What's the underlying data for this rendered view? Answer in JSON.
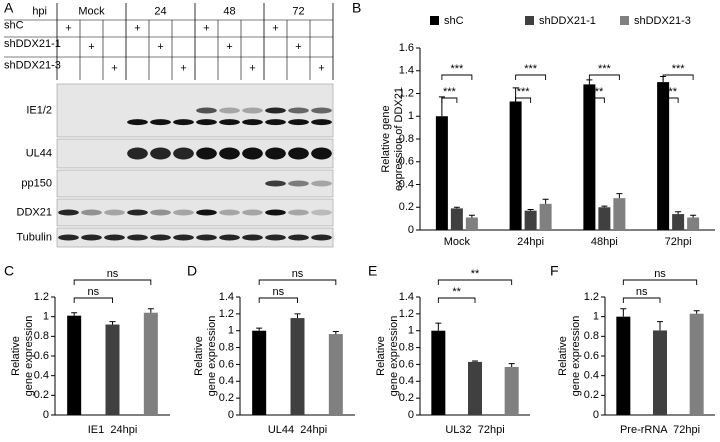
{
  "blot": {
    "label": "A",
    "header": {
      "title": "hpi",
      "groups": [
        "Mock",
        "24",
        "48",
        "72"
      ]
    },
    "rows": [
      {
        "label": "shC",
        "marks": [
          "+",
          null,
          null,
          "+",
          null,
          null,
          "+",
          null,
          null,
          "+",
          null,
          null
        ]
      },
      {
        "label": "shDDX21-1",
        "marks": [
          null,
          "+",
          null,
          null,
          "+",
          null,
          null,
          "+",
          null,
          null,
          "+",
          null
        ]
      },
      {
        "label": "shDDX21-3",
        "marks": [
          null,
          null,
          "+",
          null,
          null,
          "+",
          null,
          null,
          "+",
          null,
          null,
          "+"
        ]
      }
    ],
    "bands": [
      "IE1/2",
      "UL44",
      "pp150",
      "DDX21",
      "Tubulin"
    ]
  },
  "chart_data": [
    {
      "label": "B",
      "type": "bar",
      "categories": [
        "Mock",
        "24hpi",
        "48hpi",
        "72hpi"
      ],
      "series": [
        {
          "name": "shC",
          "color": "#000000",
          "values": [
            1.0,
            1.13,
            1.28,
            1.3
          ],
          "errors": [
            0.17,
            0.12,
            0.04,
            0.05
          ]
        },
        {
          "name": "shDDX21-1",
          "color": "#404040",
          "values": [
            0.19,
            0.17,
            0.2,
            0.14
          ],
          "errors": [
            0.01,
            0.01,
            0.01,
            0.02
          ]
        },
        {
          "name": "shDDX21-3",
          "color": "#808080",
          "values": [
            0.11,
            0.23,
            0.28,
            0.11
          ],
          "errors": [
            0.02,
            0.04,
            0.04,
            0.02
          ]
        }
      ],
      "ylabel": [
        "Relative gene",
        "expression of DDX21"
      ],
      "ylim": [
        0,
        1.6
      ],
      "yticks": [
        0,
        0.2,
        0.4,
        0.6,
        0.8,
        1,
        1.2,
        1.4,
        1.6
      ],
      "annotations": [
        "***",
        "***",
        "***",
        "***",
        "***",
        "***",
        "***",
        "***"
      ]
    },
    {
      "label": "C",
      "type": "bar",
      "categories": [
        null,
        null,
        null
      ],
      "values": [
        1.01,
        0.92,
        1.04
      ],
      "errors": [
        0.03,
        0.03,
        0.04
      ],
      "colors": [
        "#000000",
        "#404040",
        "#808080"
      ],
      "xlabel": "IE1  24hpi",
      "ylabel": [
        "Relative",
        "gene expression"
      ],
      "ylim": [
        0,
        1.2
      ],
      "yticks": [
        0,
        0.2,
        0.4,
        0.6,
        0.8,
        1,
        1.2
      ],
      "annotations": [
        "ns",
        "ns"
      ]
    },
    {
      "label": "D",
      "type": "bar",
      "categories": [
        null,
        null,
        null
      ],
      "values": [
        1.0,
        1.15,
        0.96
      ],
      "errors": [
        0.03,
        0.05,
        0.03
      ],
      "colors": [
        "#000000",
        "#404040",
        "#808080"
      ],
      "xlabel": "UL44  24hpi",
      "ylabel": [
        "Relative",
        "gene expression"
      ],
      "ylim": [
        0,
        1.4
      ],
      "yticks": [
        0,
        0.2,
        0.4,
        0.6,
        0.8,
        1,
        1.2,
        1.4
      ],
      "annotations": [
        "ns",
        "ns"
      ]
    },
    {
      "label": "E",
      "type": "bar",
      "categories": [
        null,
        null,
        null
      ],
      "values": [
        1.0,
        0.63,
        0.57
      ],
      "errors": [
        0.09,
        0.01,
        0.04
      ],
      "colors": [
        "#000000",
        "#404040",
        "#808080"
      ],
      "xlabel": "UL32  72hpi",
      "ylabel": [
        "Relative",
        "gene expression"
      ],
      "ylim": [
        0,
        1.4
      ],
      "yticks": [
        0,
        0.2,
        0.4,
        0.6,
        0.8,
        1,
        1.2,
        1.4
      ],
      "annotations": [
        "**",
        "**"
      ]
    },
    {
      "label": "F",
      "type": "bar",
      "categories": [
        null,
        null,
        null
      ],
      "values": [
        1.0,
        0.86,
        1.03
      ],
      "errors": [
        0.08,
        0.09,
        0.03
      ],
      "colors": [
        "#000000",
        "#404040",
        "#808080"
      ],
      "xlabel": "Pre-rRNA  72hpi",
      "ylabel": [
        "Relative",
        "gene expression"
      ],
      "ylim": [
        0,
        1.2
      ],
      "yticks": [
        0,
        0.2,
        0.4,
        0.6,
        0.8,
        1,
        1.2
      ],
      "annotations": [
        "ns",
        "ns"
      ]
    }
  ]
}
